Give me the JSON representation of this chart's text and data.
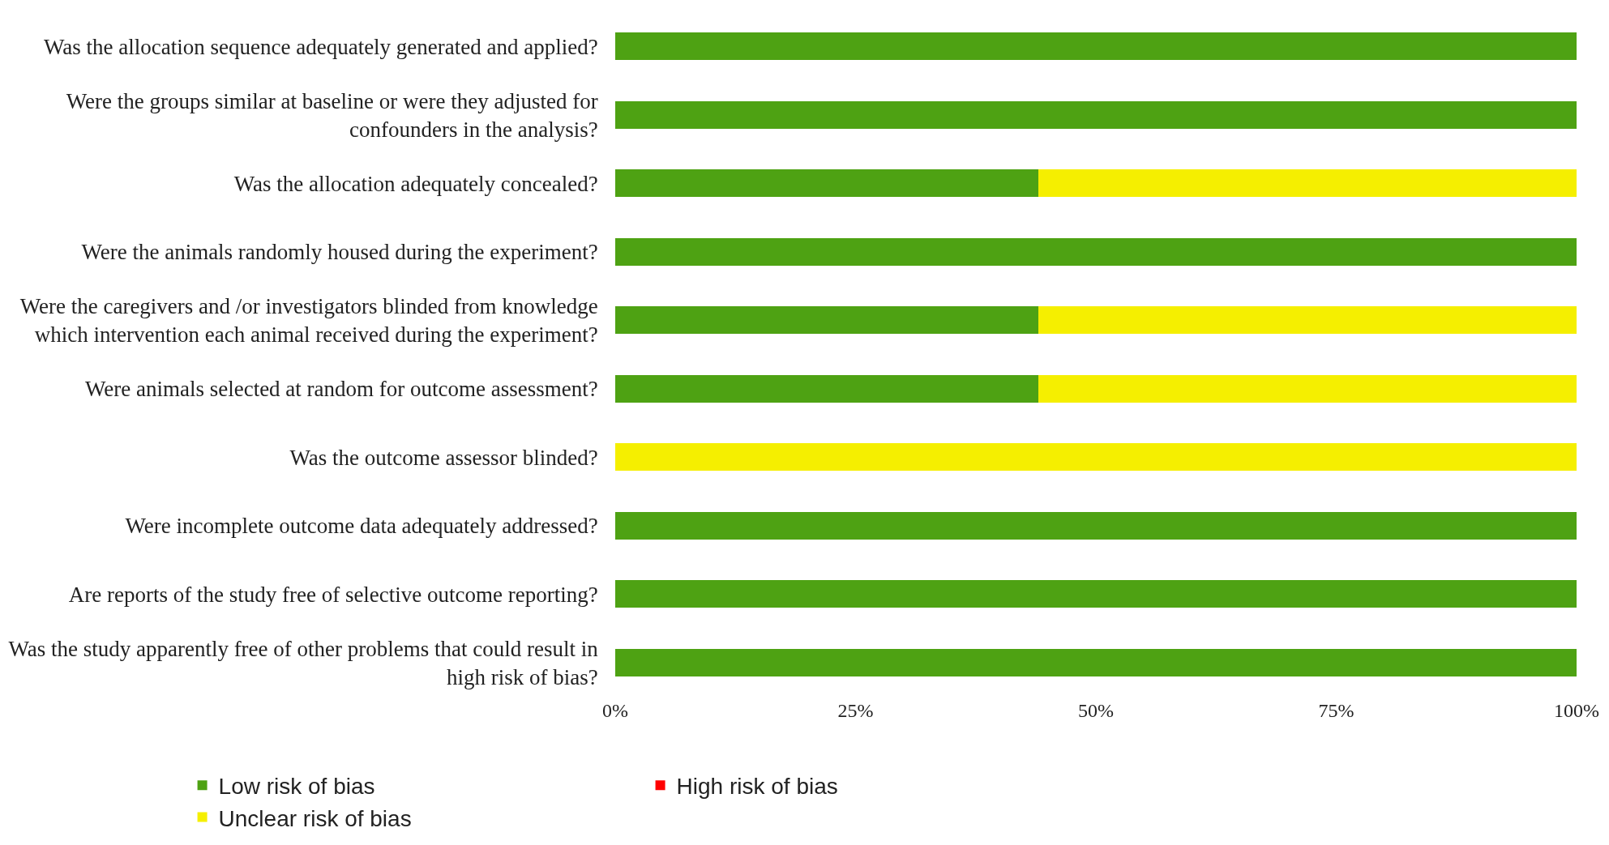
{
  "chart_data": {
    "type": "bar",
    "orientation": "horizontal",
    "stacked": true,
    "categories": [
      "Was the allocation sequence adequately generated and applied?",
      "Were the groups similar at baseline or were they adjusted for confounders in the analysis?",
      "Was the allocation adequately concealed?",
      "Were the animals randomly housed during the experiment?",
      "Were the caregivers and /or investigators blinded from knowledge which intervention each animal received during the experiment?",
      "Were animals selected at random for outcome assessment?",
      "Was the outcome assessor blinded?",
      "Were incomplete outcome data adequately addressed?",
      "Are reports of the study free of selective outcome reporting?",
      "Was the study apparently free of other problems that could result in high risk of bias?"
    ],
    "series": [
      {
        "name": "Low risk of bias",
        "color": "#4ea213",
        "values": [
          100,
          100,
          44,
          100,
          44,
          44,
          0,
          100,
          100,
          100
        ]
      },
      {
        "name": "High risk of bias",
        "color": "#ff0000",
        "values": [
          0,
          0,
          0,
          0,
          0,
          0,
          0,
          0,
          0,
          0
        ]
      },
      {
        "name": "Unclear risk of bias",
        "color": "#f5ef00",
        "values": [
          0,
          0,
          56,
          0,
          56,
          56,
          100,
          0,
          0,
          0
        ]
      }
    ],
    "xlim": [
      0,
      100
    ],
    "xticks": [
      {
        "value": 0,
        "label": "0%"
      },
      {
        "value": 25,
        "label": "25%"
      },
      {
        "value": 50,
        "label": "50%"
      },
      {
        "value": 75,
        "label": "75%"
      },
      {
        "value": 100,
        "label": "100%"
      }
    ],
    "legend": "bottom"
  }
}
